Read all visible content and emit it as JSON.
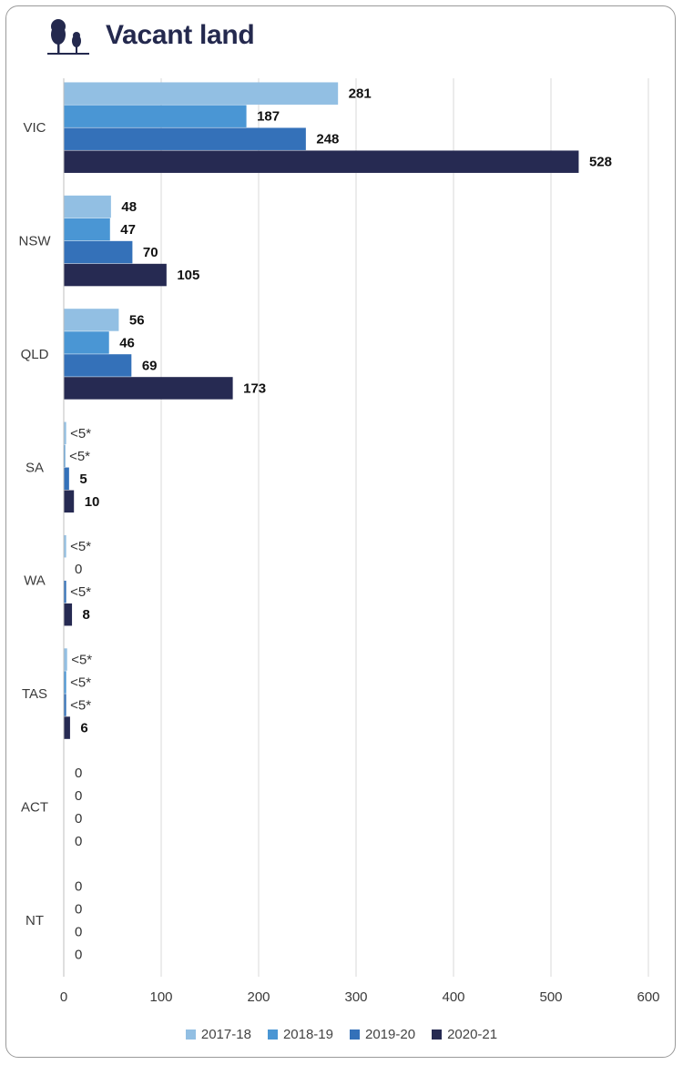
{
  "header": {
    "title": "Vacant land",
    "icon": "trees-icon"
  },
  "colors": {
    "title": "#24294e",
    "series": [
      "#92bfe3",
      "#4a96d4",
      "#3471b9",
      "#262a52"
    ],
    "grid": "#d9d9d9"
  },
  "chart_data": {
    "type": "bar",
    "orientation": "horizontal",
    "title": "Vacant land",
    "categories": [
      "VIC",
      "NSW",
      "QLD",
      "SA",
      "WA",
      "TAS",
      "ACT",
      "NT"
    ],
    "series": [
      {
        "name": "2017-18",
        "values": [
          281,
          48,
          56,
          2,
          2,
          3,
          0,
          0
        ],
        "labels": [
          "281",
          "48",
          "56",
          "<5*",
          "<5*",
          "<5*",
          "0",
          "0"
        ]
      },
      {
        "name": "2018-19",
        "values": [
          187,
          47,
          46,
          1,
          0,
          2,
          0,
          0
        ],
        "labels": [
          "187",
          "47",
          "46",
          "<5*",
          "0",
          "<5*",
          "0",
          "0"
        ]
      },
      {
        "name": "2019-20",
        "values": [
          248,
          70,
          69,
          5,
          2,
          2,
          0,
          0
        ],
        "labels": [
          "248",
          "70",
          "69",
          "5",
          "<5*",
          "<5*",
          "0",
          "0"
        ]
      },
      {
        "name": "2020-21",
        "values": [
          528,
          105,
          173,
          10,
          8,
          6,
          0,
          0
        ],
        "labels": [
          "528",
          "105",
          "173",
          "10",
          "8",
          "6",
          "0",
          "0"
        ]
      }
    ],
    "xlim": [
      0,
      600
    ],
    "xticks": [
      "0",
      "100",
      "200",
      "300",
      "400",
      "500",
      "600"
    ],
    "grid": "vertical",
    "legend": "bottom"
  }
}
